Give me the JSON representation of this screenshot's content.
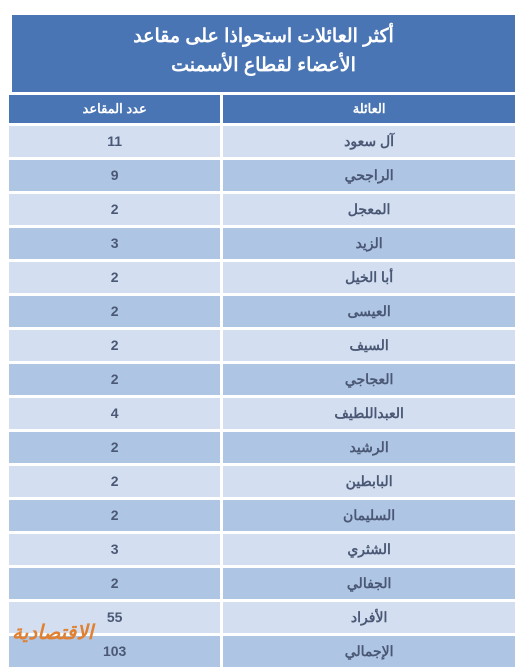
{
  "title_line1": "أكثر العائلات استحواذا على مقاعد",
  "title_line2": "الأعضاء لقطاع الأسمنت",
  "columns": {
    "family": "العائلة",
    "seats": "عدد المقاعد"
  },
  "rows": [
    {
      "family": "آل سعود",
      "seats": "11"
    },
    {
      "family": "الراجحي",
      "seats": "9"
    },
    {
      "family": "المعجل",
      "seats": "2"
    },
    {
      "family": "الزيد",
      "seats": "3"
    },
    {
      "family": "أبا الخيل",
      "seats": "2"
    },
    {
      "family": "العيسى",
      "seats": "2"
    },
    {
      "family": "السيف",
      "seats": "2"
    },
    {
      "family": "العجاجي",
      "seats": "2"
    },
    {
      "family": "العبداللطيف",
      "seats": "4"
    },
    {
      "family": "الرشيد",
      "seats": "2"
    },
    {
      "family": "البابطين",
      "seats": "2"
    },
    {
      "family": "السليمان",
      "seats": "2"
    },
    {
      "family": "الشثري",
      "seats": "3"
    },
    {
      "family": "الجفالي",
      "seats": "2"
    },
    {
      "family": "الأفراد",
      "seats": "55"
    },
    {
      "family": "الإجمالي",
      "seats": "103"
    }
  ],
  "watermark": "الاقتصادية",
  "styling": {
    "header_bg": "#4a75b5",
    "header_text": "#ffffff",
    "header_fontsize": 19,
    "colheader_bg": "#4a75b5",
    "colheader_text": "#ffffff",
    "colheader_fontsize": 13,
    "row_odd_bg": "#d3dff0",
    "row_even_bg": "#aec5e3",
    "row_text": "#4a5875",
    "row_fontsize": 14,
    "gap_color": "#ffffff",
    "gap_size": 3,
    "watermark_color": "#e08030",
    "watermark_fontsize": 20
  }
}
